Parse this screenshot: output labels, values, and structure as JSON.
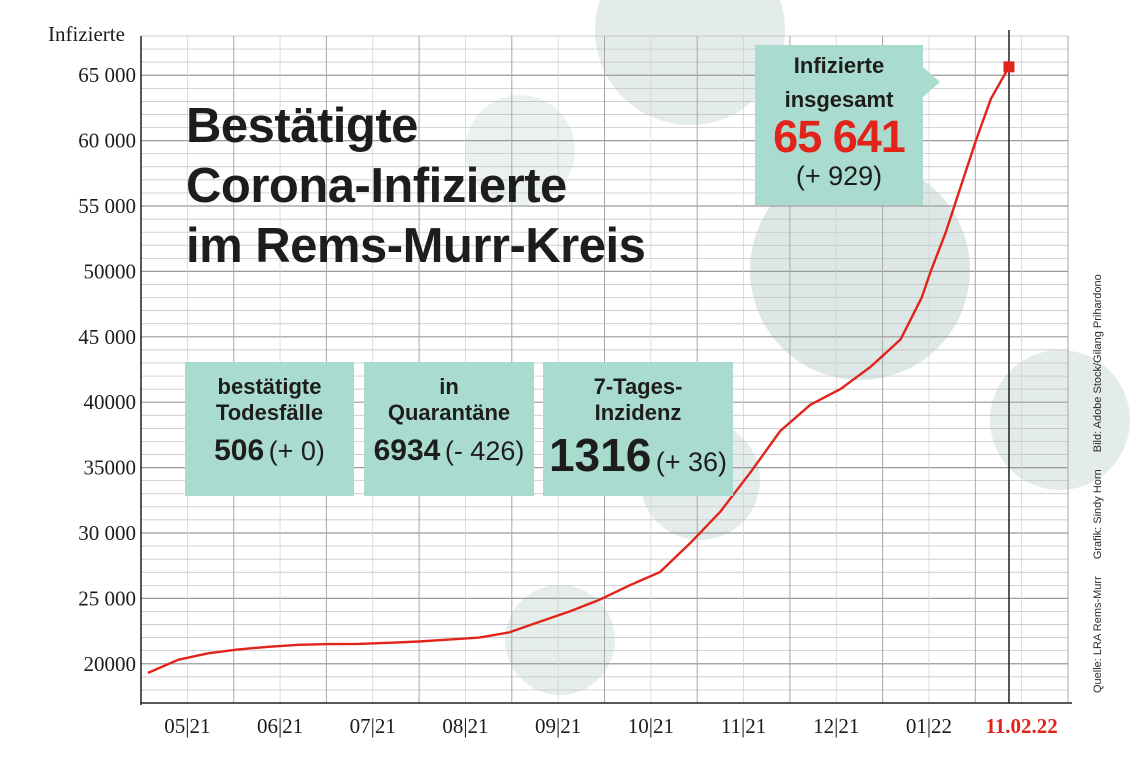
{
  "chart_data": {
    "type": "line",
    "ylabel": "Infizierte",
    "title_lines": [
      "Bestätigte",
      "Corona-Infizierte",
      "im Rems-Murr-Kreis"
    ],
    "ylim": [
      17000,
      68000
    ],
    "y_ticks": [
      20000,
      25000,
      30000,
      35000,
      40000,
      45000,
      50000,
      55000,
      60000,
      65000
    ],
    "y_tick_labels": [
      "20000",
      "25 000",
      "30 000",
      "35000",
      "40000",
      "45 000",
      "50000",
      "55 000",
      "60 000",
      "65 000"
    ],
    "x_months": [
      "05|21",
      "06|21",
      "07|21",
      "08|21",
      "09|21",
      "10|21",
      "11|21",
      "12|21",
      "01|22"
    ],
    "x_last_label": "11.02.22",
    "x_range_days": [
      0,
      289
    ],
    "series": [
      {
        "name": "Infizierte",
        "x_days": [
          0,
          10,
          20,
          30,
          40,
          50,
          60,
          70,
          80,
          90,
          100,
          110,
          120,
          130,
          140,
          150,
          160,
          170,
          180,
          190,
          200,
          210,
          220,
          230,
          240,
          250,
          257,
          260,
          265,
          270,
          275,
          280,
          286
        ],
        "values": [
          19300,
          20300,
          20800,
          21100,
          21300,
          21450,
          21500,
          21520,
          21600,
          21700,
          21850,
          22000,
          22400,
          23200,
          24000,
          24900,
          26000,
          27000,
          29200,
          31600,
          34600,
          37800,
          39800,
          41000,
          42700,
          44800,
          48000,
          50000,
          53000,
          56500,
          60000,
          63200,
          65641
        ]
      }
    ],
    "marker": {
      "x_day": 286,
      "value": 65641
    },
    "annotations": {
      "deaths": {
        "label_line1": "bestätigte",
        "label_line2": "Todesfälle",
        "value": "506",
        "change": "(+ 0)"
      },
      "quarantine": {
        "label_line1": "in",
        "label_line2": "Quarantäne",
        "value": "6934",
        "change": "(- 426)"
      },
      "incidence": {
        "label_line1": "7-Tages-",
        "label_line2": "Inzidenz",
        "value": "1316",
        "change": "(+ 36)"
      },
      "total": {
        "label_line1": "Infizierte",
        "label_line2": "insgesamt",
        "value": "65 641",
        "change": "(+ 929)"
      }
    },
    "credits": [
      "Quelle: LRA Rems-Murr",
      "Grafik: Sindy Horn",
      "Bild: Adobe Stock/Gilang Prihardono"
    ]
  },
  "colors": {
    "line": "#e2231a",
    "box_fill": "#a9dccf",
    "grid": "#bdbdbd",
    "virus": "#c9dad8",
    "accent_red": "#e2231a"
  }
}
